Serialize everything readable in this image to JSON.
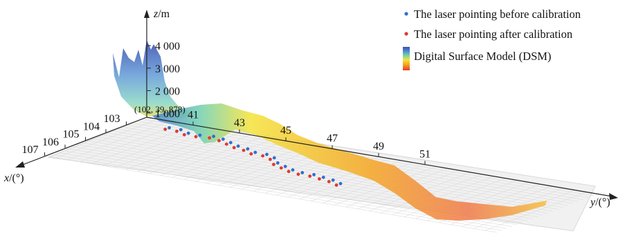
{
  "chart_data": {
    "type": "scatter",
    "axes": {
      "x": {
        "label_var": "x",
        "label_unit": "/(°)",
        "ticks": [
          "107",
          "106",
          "105",
          "104",
          "103"
        ]
      },
      "y": {
        "label_var": "y",
        "label_unit": "/(°)",
        "ticks": [
          "41",
          "43",
          "45",
          "47",
          "49",
          "51"
        ]
      },
      "z": {
        "label_var": "z",
        "label_unit": "/m",
        "ticks": [
          "1 000",
          "2 000",
          "3 000",
          "4 000"
        ]
      }
    },
    "origin_label": "(102, 39, 878)",
    "legend": [
      {
        "label": "The laser pointing before calibration",
        "color": "#2f6fd0",
        "marker": "dot"
      },
      {
        "label": "The laser pointing after calibration",
        "color": "#e03a2f",
        "marker": "dot"
      },
      {
        "label": "Digital Surface Model (DSM)",
        "marker": "colorbar"
      }
    ],
    "colormap": [
      "#e83a2a",
      "#f5a623",
      "#f5e23a",
      "#6fd0b0",
      "#4a7fd0",
      "#3a4fb0"
    ],
    "grid": true,
    "series": [
      {
        "name": "The laser pointing before calibration",
        "color": "#2f6fd0",
        "points": [
          [
            102.6,
            40.5
          ],
          [
            102.6,
            41.0
          ],
          [
            102.8,
            41.5
          ],
          [
            102.8,
            42.0
          ],
          [
            102.7,
            42.5
          ],
          [
            102.8,
            43.0
          ],
          [
            103.0,
            43.5
          ],
          [
            103.2,
            44.0
          ],
          [
            103.3,
            44.5
          ],
          [
            103.5,
            45.0
          ],
          [
            103.5,
            45.5
          ],
          [
            103.7,
            46.0
          ],
          [
            104.1,
            46.5
          ],
          [
            104.3,
            47.0
          ],
          [
            104.5,
            47.5
          ],
          [
            104.6,
            48.0
          ],
          [
            104.6,
            48.5
          ],
          [
            104.7,
            49.0
          ],
          [
            104.8,
            49.5
          ],
          [
            105.0,
            50.0
          ]
        ]
      },
      {
        "name": "The laser pointing after calibration",
        "color": "#e03a2f",
        "points": [
          [
            102.8,
            40.5
          ],
          [
            102.8,
            41.0
          ],
          [
            103.0,
            41.5
          ],
          [
            103.0,
            42.0
          ],
          [
            102.9,
            42.5
          ],
          [
            103.0,
            43.0
          ],
          [
            103.2,
            43.5
          ],
          [
            103.4,
            44.0
          ],
          [
            103.5,
            44.5
          ],
          [
            103.7,
            45.0
          ],
          [
            103.7,
            45.5
          ],
          [
            103.9,
            46.0
          ],
          [
            104.3,
            46.5
          ],
          [
            104.5,
            47.0
          ],
          [
            104.7,
            47.5
          ],
          [
            104.8,
            48.0
          ],
          [
            104.8,
            48.5
          ],
          [
            104.9,
            49.0
          ],
          [
            105.0,
            49.5
          ],
          [
            105.2,
            50.0
          ]
        ]
      }
    ]
  }
}
